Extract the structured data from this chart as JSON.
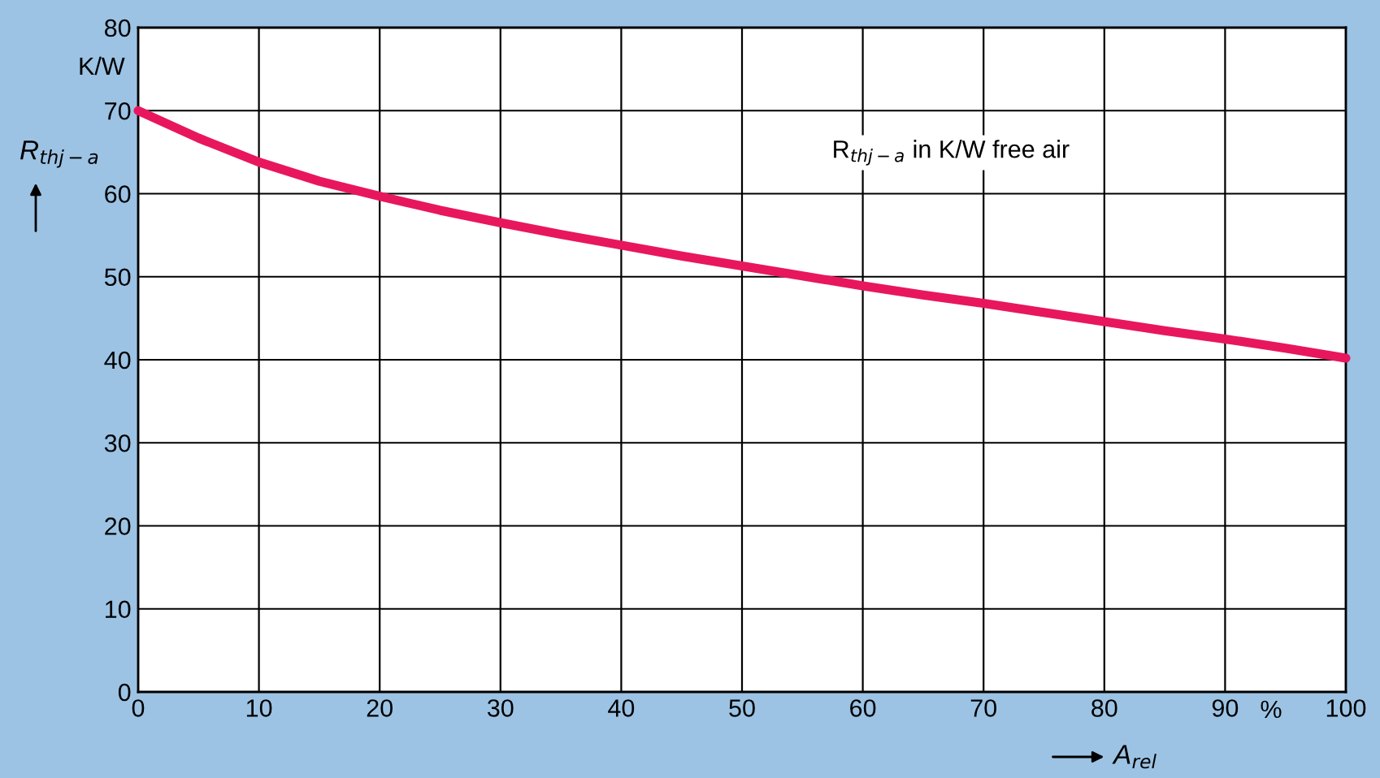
{
  "chart_data": {
    "type": "line",
    "xlabel": "A$_{rel}$",
    "ylabel": "R$_{thj−a}$",
    "x": [
      0,
      5,
      10,
      15,
      20,
      25,
      30,
      35,
      40,
      45,
      50,
      55,
      60,
      65,
      70,
      75,
      80,
      85,
      90,
      95,
      100
    ],
    "series": [
      {
        "color": "#e8175d",
        "values": [
          70,
          66.7,
          63.8,
          61.5,
          59.7,
          58,
          56.5,
          55.1,
          53.8,
          52.5,
          51.3,
          50.1,
          48.9,
          47.8,
          46.8,
          45.7,
          44.6,
          43.5,
          42.5,
          41.4,
          40.2
        ]
      }
    ],
    "xlim": [
      0,
      100
    ],
    "ylim": [
      0,
      80
    ],
    "xticks": [
      0,
      10,
      20,
      30,
      40,
      50,
      60,
      70,
      80,
      90,
      100
    ],
    "yticks": [
      0,
      10,
      20,
      30,
      40,
      50,
      60,
      70,
      80
    ],
    "grid": true,
    "marker": "none",
    "line_style": "solid",
    "annotations": [
      "R$_{thj−a}$ in K/W free air",
      "K/W",
      "%"
    ]
  }
}
